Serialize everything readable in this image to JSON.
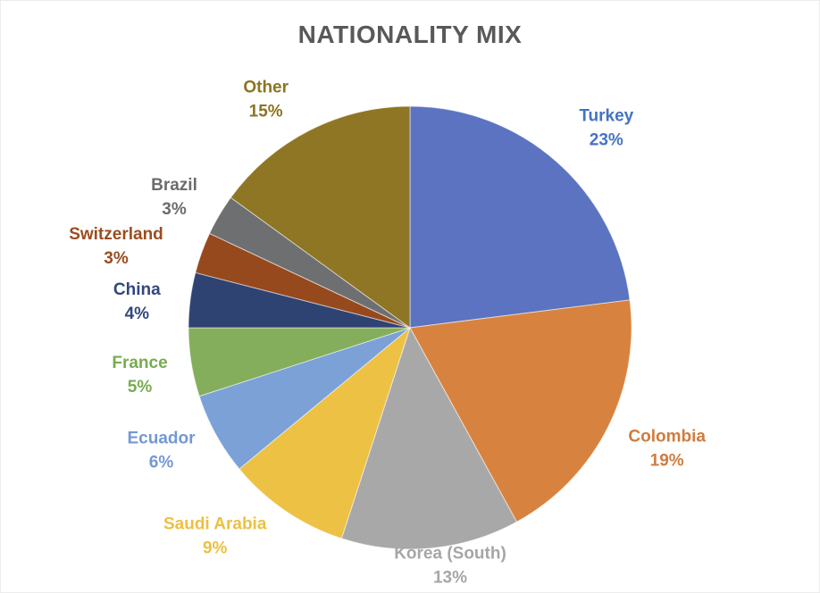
{
  "page": {
    "background": "#ffffff",
    "border_color": "#ececec"
  },
  "chart_data": {
    "type": "pie",
    "title": "NATIONALITY MIX",
    "title_color": "#595959",
    "categories": [
      "Turkey",
      "Colombia",
      "Korea (South)",
      "Saudi Arabia",
      "Ecuador",
      "France",
      "China",
      "Switzerland",
      "Brazil",
      "Other"
    ],
    "values": [
      23,
      19,
      13,
      9,
      6,
      5,
      4,
      3,
      3,
      15
    ],
    "value_labels": [
      "23%",
      "19%",
      "13%",
      "9%",
      "6%",
      "5%",
      "4%",
      "3%",
      "3%",
      "15%"
    ],
    "slice_colors": [
      "#5B73C0",
      "#D8823F",
      "#A8A8A8",
      "#EDC143",
      "#7BA1D7",
      "#84AE5C",
      "#2F4373",
      "#96491D",
      "#6E6F71",
      "#8E7624"
    ],
    "label_colors": [
      "#4472C4",
      "#D07C3F",
      "#A6A6A6",
      "#EDC040",
      "#7398D4",
      "#77AC51",
      "#33477B",
      "#9A4D20",
      "#6B6B6B",
      "#8C7421"
    ],
    "start_angle_deg": 0,
    "direction": "clockwise",
    "legend": "none",
    "data_labels": "category_and_percent_outside"
  }
}
